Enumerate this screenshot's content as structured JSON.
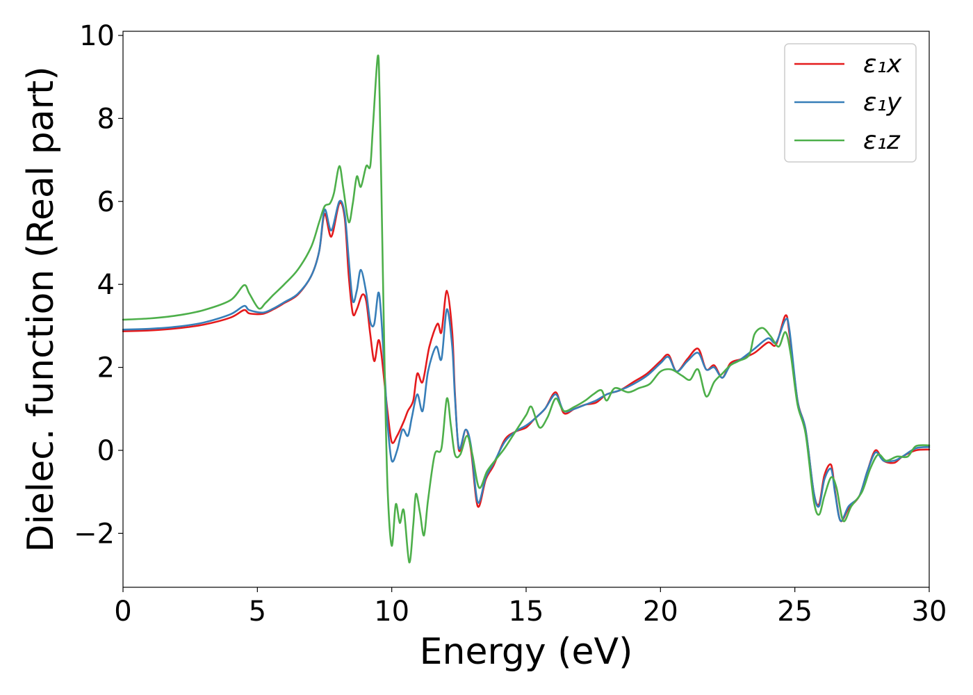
{
  "chart_data": {
    "type": "line",
    "xlabel": "Energy (eV)",
    "ylabel": "Dielec. function (Real part)",
    "xlim": [
      0,
      30
    ],
    "ylim": [
      -3.3,
      10.1
    ],
    "xticks": [
      0,
      5,
      10,
      15,
      20,
      25,
      30
    ],
    "xtick_labels": [
      "0",
      "5",
      "10",
      "15",
      "20",
      "25",
      "30"
    ],
    "yticks": [
      -2,
      0,
      2,
      4,
      6,
      8,
      10
    ],
    "ytick_labels": [
      "−2",
      "0",
      "2",
      "4",
      "6",
      "8",
      "10"
    ],
    "grid": false,
    "legend": "top-right",
    "series": [
      {
        "name": "ε₁x",
        "color": "#e41a1c",
        "points": [
          [
            0,
            2.87
          ],
          [
            1,
            2.89
          ],
          [
            2,
            2.94
          ],
          [
            3,
            3.03
          ],
          [
            4,
            3.2
          ],
          [
            4.5,
            3.38
          ],
          [
            4.7,
            3.3
          ],
          [
            5.2,
            3.29
          ],
          [
            5.6,
            3.4
          ],
          [
            6,
            3.55
          ],
          [
            6.5,
            3.75
          ],
          [
            7,
            4.2
          ],
          [
            7.3,
            4.8
          ],
          [
            7.5,
            5.7
          ],
          [
            7.75,
            5.15
          ],
          [
            8.05,
            5.95
          ],
          [
            8.25,
            5.6
          ],
          [
            8.4,
            4.2
          ],
          [
            8.55,
            3.3
          ],
          [
            8.7,
            3.4
          ],
          [
            8.9,
            3.75
          ],
          [
            9.05,
            3.6
          ],
          [
            9.2,
            2.8
          ],
          [
            9.35,
            2.15
          ],
          [
            9.5,
            2.65
          ],
          [
            9.6,
            2.4
          ],
          [
            9.75,
            1.5
          ],
          [
            9.85,
            0.9
          ],
          [
            10.0,
            0.2
          ],
          [
            10.2,
            0.35
          ],
          [
            10.45,
            0.7
          ],
          [
            10.6,
            0.95
          ],
          [
            10.8,
            1.2
          ],
          [
            10.95,
            1.85
          ],
          [
            11.15,
            1.65
          ],
          [
            11.4,
            2.5
          ],
          [
            11.7,
            3.05
          ],
          [
            11.85,
            2.85
          ],
          [
            12.05,
            3.85
          ],
          [
            12.25,
            2.85
          ],
          [
            12.35,
            1.4
          ],
          [
            12.5,
            0.0
          ],
          [
            12.75,
            0.5
          ],
          [
            12.95,
            0.0
          ],
          [
            13.2,
            -1.35
          ],
          [
            13.5,
            -0.7
          ],
          [
            13.8,
            -0.35
          ],
          [
            14.2,
            0.25
          ],
          [
            14.6,
            0.45
          ],
          [
            15.0,
            0.55
          ],
          [
            15.3,
            0.75
          ],
          [
            15.7,
            1.0
          ],
          [
            16.1,
            1.4
          ],
          [
            16.4,
            0.9
          ],
          [
            16.8,
            1.0
          ],
          [
            17.2,
            1.1
          ],
          [
            17.6,
            1.15
          ],
          [
            18.0,
            1.35
          ],
          [
            18.5,
            1.45
          ],
          [
            19.0,
            1.65
          ],
          [
            19.5,
            1.85
          ],
          [
            20.0,
            2.15
          ],
          [
            20.3,
            2.3
          ],
          [
            20.6,
            1.9
          ],
          [
            21.0,
            2.2
          ],
          [
            21.4,
            2.45
          ],
          [
            21.7,
            1.95
          ],
          [
            22.0,
            2.05
          ],
          [
            22.3,
            1.75
          ],
          [
            22.6,
            2.1
          ],
          [
            23.0,
            2.2
          ],
          [
            23.5,
            2.35
          ],
          [
            24.0,
            2.6
          ],
          [
            24.3,
            2.55
          ],
          [
            24.65,
            3.25
          ],
          [
            24.8,
            2.8
          ],
          [
            25.1,
            1.2
          ],
          [
            25.4,
            0.5
          ],
          [
            25.7,
            -1.0
          ],
          [
            25.9,
            -1.3
          ],
          [
            26.1,
            -0.6
          ],
          [
            26.35,
            -0.35
          ],
          [
            26.5,
            -1.0
          ],
          [
            26.7,
            -1.7
          ],
          [
            27.0,
            -1.4
          ],
          [
            27.4,
            -1.1
          ],
          [
            27.7,
            -0.5
          ],
          [
            28.0,
            0.0
          ],
          [
            28.3,
            -0.25
          ],
          [
            28.7,
            -0.3
          ],
          [
            29.0,
            -0.15
          ],
          [
            29.5,
            0.0
          ],
          [
            30,
            0.02
          ]
        ]
      },
      {
        "name": "ε₁y",
        "color": "#377eb8",
        "points": [
          [
            0,
            2.91
          ],
          [
            1,
            2.93
          ],
          [
            2,
            2.98
          ],
          [
            3,
            3.08
          ],
          [
            4,
            3.28
          ],
          [
            4.5,
            3.48
          ],
          [
            4.7,
            3.38
          ],
          [
            5.2,
            3.32
          ],
          [
            5.6,
            3.42
          ],
          [
            6,
            3.57
          ],
          [
            6.5,
            3.77
          ],
          [
            7,
            4.2
          ],
          [
            7.3,
            4.8
          ],
          [
            7.5,
            5.8
          ],
          [
            7.75,
            5.3
          ],
          [
            8.05,
            6.0
          ],
          [
            8.25,
            5.7
          ],
          [
            8.4,
            4.6
          ],
          [
            8.55,
            3.6
          ],
          [
            8.7,
            3.85
          ],
          [
            8.85,
            4.35
          ],
          [
            9.05,
            3.8
          ],
          [
            9.2,
            3.1
          ],
          [
            9.35,
            3.05
          ],
          [
            9.5,
            3.8
          ],
          [
            9.6,
            3.3
          ],
          [
            9.75,
            1.7
          ],
          [
            9.85,
            0.6
          ],
          [
            10.0,
            -0.25
          ],
          [
            10.2,
            0.0
          ],
          [
            10.4,
            0.5
          ],
          [
            10.6,
            0.35
          ],
          [
            10.75,
            0.8
          ],
          [
            10.95,
            1.35
          ],
          [
            11.15,
            0.95
          ],
          [
            11.35,
            1.9
          ],
          [
            11.65,
            2.5
          ],
          [
            11.85,
            2.2
          ],
          [
            12.05,
            3.4
          ],
          [
            12.25,
            2.5
          ],
          [
            12.35,
            1.3
          ],
          [
            12.5,
            0.05
          ],
          [
            12.75,
            0.5
          ],
          [
            12.95,
            0.1
          ],
          [
            13.2,
            -1.25
          ],
          [
            13.5,
            -0.65
          ],
          [
            13.8,
            -0.3
          ],
          [
            14.2,
            0.2
          ],
          [
            14.6,
            0.45
          ],
          [
            15.0,
            0.6
          ],
          [
            15.3,
            0.75
          ],
          [
            15.7,
            1.0
          ],
          [
            16.1,
            1.35
          ],
          [
            16.4,
            0.95
          ],
          [
            16.8,
            1.0
          ],
          [
            17.2,
            1.1
          ],
          [
            17.6,
            1.2
          ],
          [
            18.0,
            1.35
          ],
          [
            18.5,
            1.45
          ],
          [
            19.0,
            1.6
          ],
          [
            19.5,
            1.8
          ],
          [
            20.0,
            2.1
          ],
          [
            20.3,
            2.25
          ],
          [
            20.6,
            1.9
          ],
          [
            21.0,
            2.15
          ],
          [
            21.4,
            2.35
          ],
          [
            21.7,
            1.95
          ],
          [
            22.0,
            2.0
          ],
          [
            22.3,
            1.75
          ],
          [
            22.6,
            2.05
          ],
          [
            23.0,
            2.2
          ],
          [
            23.5,
            2.45
          ],
          [
            24.0,
            2.7
          ],
          [
            24.3,
            2.6
          ],
          [
            24.65,
            3.15
          ],
          [
            24.8,
            2.9
          ],
          [
            25.1,
            1.2
          ],
          [
            25.4,
            0.5
          ],
          [
            25.7,
            -1.0
          ],
          [
            25.9,
            -1.35
          ],
          [
            26.1,
            -0.7
          ],
          [
            26.35,
            -0.45
          ],
          [
            26.5,
            -1.05
          ],
          [
            26.7,
            -1.7
          ],
          [
            27.0,
            -1.35
          ],
          [
            27.4,
            -1.1
          ],
          [
            27.7,
            -0.5
          ],
          [
            28.0,
            -0.05
          ],
          [
            28.3,
            -0.25
          ],
          [
            28.7,
            -0.25
          ],
          [
            29.0,
            -0.15
          ],
          [
            29.5,
            0.05
          ],
          [
            30,
            0.08
          ]
        ]
      },
      {
        "name": "ε₁z",
        "color": "#4daf4a",
        "points": [
          [
            0,
            3.15
          ],
          [
            1,
            3.18
          ],
          [
            2,
            3.25
          ],
          [
            3,
            3.38
          ],
          [
            4,
            3.62
          ],
          [
            4.5,
            3.98
          ],
          [
            4.7,
            3.78
          ],
          [
            5.05,
            3.42
          ],
          [
            5.3,
            3.55
          ],
          [
            5.6,
            3.75
          ],
          [
            6,
            4.0
          ],
          [
            6.5,
            4.35
          ],
          [
            7,
            4.9
          ],
          [
            7.3,
            5.5
          ],
          [
            7.5,
            5.88
          ],
          [
            7.7,
            5.95
          ],
          [
            7.85,
            6.2
          ],
          [
            8.05,
            6.85
          ],
          [
            8.2,
            6.3
          ],
          [
            8.4,
            5.5
          ],
          [
            8.55,
            5.95
          ],
          [
            8.7,
            6.6
          ],
          [
            8.85,
            6.35
          ],
          [
            9.05,
            6.85
          ],
          [
            9.2,
            6.85
          ],
          [
            9.3,
            7.8
          ],
          [
            9.48,
            9.5
          ],
          [
            9.55,
            8.5
          ],
          [
            9.65,
            5.0
          ],
          [
            9.75,
            1.5
          ],
          [
            9.85,
            -1.0
          ],
          [
            10.0,
            -2.3
          ],
          [
            10.15,
            -1.3
          ],
          [
            10.3,
            -1.75
          ],
          [
            10.45,
            -1.45
          ],
          [
            10.65,
            -2.7
          ],
          [
            10.8,
            -1.8
          ],
          [
            10.9,
            -1.05
          ],
          [
            11.05,
            -1.5
          ],
          [
            11.2,
            -2.05
          ],
          [
            11.35,
            -1.2
          ],
          [
            11.6,
            -0.1
          ],
          [
            11.85,
            0.05
          ],
          [
            12.05,
            1.25
          ],
          [
            12.2,
            0.6
          ],
          [
            12.35,
            -0.1
          ],
          [
            12.55,
            -0.1
          ],
          [
            12.8,
            0.35
          ],
          [
            13.0,
            -0.1
          ],
          [
            13.25,
            -0.9
          ],
          [
            13.55,
            -0.5
          ],
          [
            13.9,
            -0.2
          ],
          [
            14.2,
            0.05
          ],
          [
            14.6,
            0.45
          ],
          [
            15.0,
            0.85
          ],
          [
            15.2,
            1.05
          ],
          [
            15.5,
            0.55
          ],
          [
            15.8,
            0.8
          ],
          [
            16.1,
            1.25
          ],
          [
            16.4,
            0.95
          ],
          [
            16.8,
            1.05
          ],
          [
            17.2,
            1.2
          ],
          [
            17.5,
            1.35
          ],
          [
            17.8,
            1.45
          ],
          [
            18.0,
            1.2
          ],
          [
            18.3,
            1.5
          ],
          [
            18.8,
            1.4
          ],
          [
            19.2,
            1.5
          ],
          [
            19.6,
            1.6
          ],
          [
            20.0,
            1.9
          ],
          [
            20.4,
            1.95
          ],
          [
            20.8,
            1.8
          ],
          [
            21.1,
            1.7
          ],
          [
            21.4,
            1.95
          ],
          [
            21.7,
            1.3
          ],
          [
            22.0,
            1.65
          ],
          [
            22.3,
            1.85
          ],
          [
            22.6,
            2.05
          ],
          [
            22.9,
            2.15
          ],
          [
            23.3,
            2.3
          ],
          [
            23.5,
            2.8
          ],
          [
            23.8,
            2.95
          ],
          [
            24.1,
            2.75
          ],
          [
            24.4,
            2.5
          ],
          [
            24.65,
            2.85
          ],
          [
            24.85,
            2.3
          ],
          [
            25.1,
            1.1
          ],
          [
            25.4,
            0.4
          ],
          [
            25.7,
            -1.2
          ],
          [
            25.9,
            -1.55
          ],
          [
            26.1,
            -1.1
          ],
          [
            26.35,
            -0.65
          ],
          [
            26.55,
            -0.9
          ],
          [
            26.8,
            -1.7
          ],
          [
            27.1,
            -1.35
          ],
          [
            27.5,
            -1.0
          ],
          [
            27.8,
            -0.45
          ],
          [
            28.1,
            -0.1
          ],
          [
            28.4,
            -0.25
          ],
          [
            28.8,
            -0.15
          ],
          [
            29.2,
            -0.15
          ],
          [
            29.5,
            0.1
          ],
          [
            30,
            0.12
          ]
        ]
      }
    ]
  }
}
